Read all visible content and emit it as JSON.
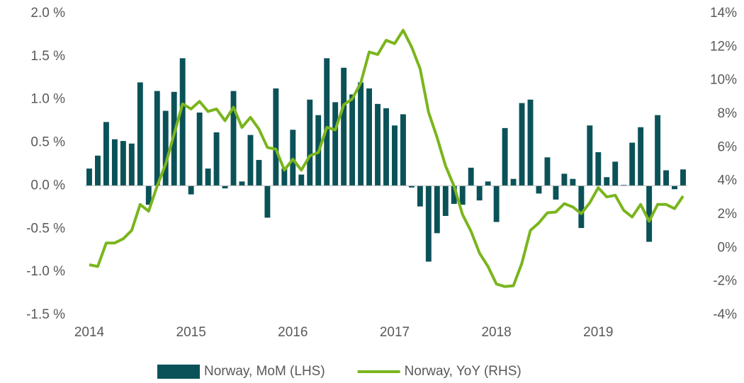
{
  "chart_data": {
    "type": "bar-line",
    "categories": [
      "2014",
      null,
      null,
      null,
      null,
      null,
      null,
      null,
      null,
      null,
      null,
      null,
      "2015",
      null,
      null,
      null,
      null,
      null,
      null,
      null,
      null,
      null,
      null,
      null,
      "2016",
      null,
      null,
      null,
      null,
      null,
      null,
      null,
      null,
      null,
      null,
      null,
      "2017",
      null,
      null,
      null,
      null,
      null,
      null,
      null,
      null,
      null,
      null,
      null,
      "2018",
      null,
      null,
      null,
      null,
      null,
      null,
      null,
      null,
      null,
      null,
      null,
      "2019",
      null,
      null,
      null,
      null,
      null,
      null,
      null,
      null,
      null,
      null
    ],
    "series": [
      {
        "name": "Norway, MoM (LHS)",
        "kind": "bar",
        "color": "#0b5258",
        "axis": "y",
        "values": [
          0.2,
          0.35,
          0.74,
          0.54,
          0.52,
          0.49,
          1.2,
          -0.22,
          1.1,
          0.87,
          1.09,
          1.48,
          -0.1,
          0.85,
          0.2,
          0.62,
          -0.03,
          1.1,
          0.05,
          0.59,
          0.3,
          -0.37,
          1.13,
          0.2,
          0.65,
          0.13,
          1.0,
          0.82,
          1.48,
          0.97,
          1.37,
          1.06,
          1.2,
          1.13,
          0.95,
          0.9,
          0.7,
          0.83,
          -0.02,
          -0.24,
          -0.88,
          -0.55,
          -0.35,
          -0.21,
          -0.22,
          0.21,
          -0.17,
          0.05,
          -0.42,
          0.67,
          0.08,
          0.96,
          1.0,
          -0.09,
          0.33,
          -0.16,
          0.14,
          0.08,
          -0.49,
          0.7,
          0.39,
          0.1,
          0.28,
          0.01,
          0.5,
          0.68,
          -0.65,
          0.82,
          0.18,
          -0.04,
          0.19
        ]
      },
      {
        "name": "Norway, YoY (RHS)",
        "kind": "line",
        "color": "#7ab51d",
        "axis": "y2",
        "values": [
          -1.0,
          -1.1,
          0.3,
          0.3,
          0.55,
          1.05,
          2.6,
          2.2,
          3.7,
          5.0,
          6.8,
          8.6,
          8.3,
          8.75,
          8.15,
          8.3,
          7.6,
          8.4,
          7.2,
          7.8,
          7.1,
          6.0,
          5.9,
          4.65,
          5.3,
          4.65,
          5.5,
          5.7,
          7.2,
          7.05,
          8.55,
          8.9,
          9.85,
          11.7,
          11.55,
          12.4,
          12.2,
          13.0,
          12.0,
          10.7,
          8.1,
          6.6,
          4.9,
          3.7,
          2.0,
          1.0,
          -0.3,
          -1.1,
          -2.15,
          -2.3,
          -2.25,
          -0.9,
          1.05,
          1.5,
          2.1,
          2.15,
          2.65,
          2.45,
          2.05,
          2.7,
          3.6,
          3.05,
          3.15,
          2.25,
          1.85,
          2.6,
          1.6,
          2.6,
          2.6,
          2.35,
          3.1
        ]
      }
    ],
    "ylim": [
      -1.5,
      2.0
    ],
    "yticks": [
      {
        "value": -1.5,
        "label": "-1.5 %"
      },
      {
        "value": -1.0,
        "label": "-1.0 %"
      },
      {
        "value": -0.5,
        "label": "-0.5 %"
      },
      {
        "value": 0,
        "label": "0.0 %"
      },
      {
        "value": 0.5,
        "label": "0.5 %"
      },
      {
        "value": 1.0,
        "label": "1.0 %"
      },
      {
        "value": 1.5,
        "label": "1.5 %"
      },
      {
        "value": 2.0,
        "label": "2.0 %"
      }
    ],
    "y2lim": [
      -4,
      14
    ],
    "y2ticks": [
      {
        "value": -4,
        "label": "-4%"
      },
      {
        "value": -2,
        "label": "-2%"
      },
      {
        "value": 0,
        "label": "0%"
      },
      {
        "value": 2,
        "label": "2%"
      },
      {
        "value": 4,
        "label": "4%"
      },
      {
        "value": 6,
        "label": "6%"
      },
      {
        "value": 8,
        "label": "8%"
      },
      {
        "value": 10,
        "label": "10%"
      },
      {
        "value": 12,
        "label": "12%"
      },
      {
        "value": 14,
        "label": "14%"
      }
    ],
    "grid": false,
    "legend": "bottom"
  }
}
